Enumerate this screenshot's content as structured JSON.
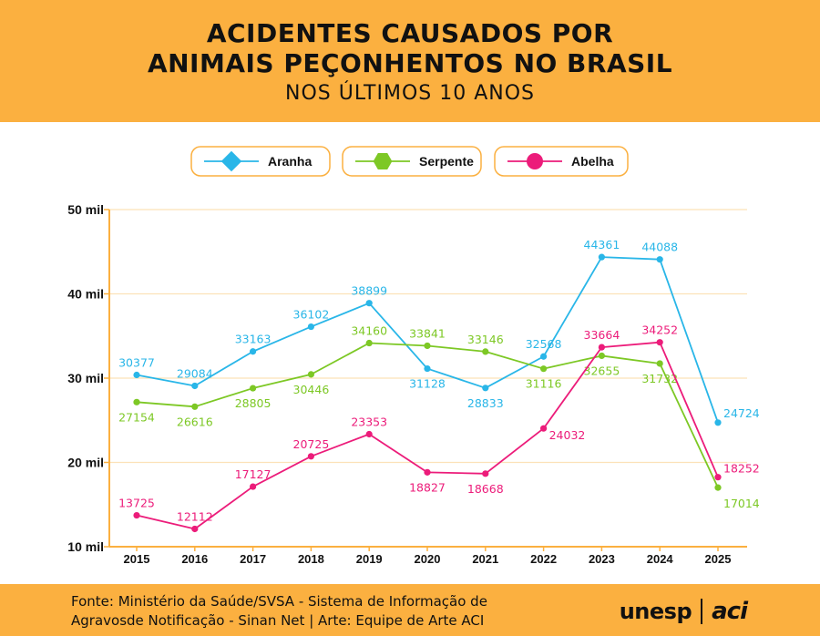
{
  "header": {
    "title_line1": "ACIDENTES CAUSADOS POR",
    "title_line2": "ANIMAIS PEÇONHENTOS NO BRASIL",
    "subtitle": "NOS ÚLTIMOS 10 ANOS"
  },
  "footer": {
    "source_line1": "Fonte: Ministério da Saúde/SVSA - Sistema de Informação de",
    "source_line2": "Agravosde Notificação - Sinan Net | Arte: Equipe de Arte ACI",
    "logo_unesp": "unesp",
    "logo_aci": "aci"
  },
  "chart_data": {
    "type": "line",
    "title": "ACIDENTES CAUSADOS POR ANIMAIS PEÇONHENTOS NO BRASIL",
    "subtitle": "NOS ÚLTIMOS 10 ANOS",
    "xlabel": "",
    "ylabel": "",
    "x": [
      "2015",
      "2016",
      "2017",
      "2018",
      "2019",
      "2020",
      "2021",
      "2022",
      "2023",
      "2024",
      "2025"
    ],
    "ylim": [
      10000,
      50000
    ],
    "y_ticks": [
      10000,
      20000,
      30000,
      40000,
      50000
    ],
    "y_tick_labels": [
      "10 mil",
      "20 mil",
      "30 mil",
      "40 mil",
      "50 mil"
    ],
    "grid": true,
    "legend_position": "top-center",
    "series": [
      {
        "name": "Aranha",
        "color": "#29B6E8",
        "marker": "diamond",
        "values": [
          30377,
          29084,
          33163,
          36102,
          38899,
          31128,
          28833,
          32568,
          44361,
          44088,
          24724
        ],
        "labels": [
          "30377",
          "29084",
          "33163",
          "36102",
          "38899",
          "31128",
          "28833",
          "32568",
          "44361",
          "44088",
          "24724"
        ],
        "label_pos": [
          "above",
          "above",
          "above",
          "above",
          "above",
          "below",
          "below",
          "above",
          "above",
          "above",
          "right"
        ]
      },
      {
        "name": "Serpente",
        "color": "#7DC825",
        "marker": "hexagon",
        "values": [
          27154,
          26616,
          28805,
          30446,
          34160,
          33841,
          33146,
          31116,
          32655,
          31732,
          17014
        ],
        "labels": [
          "27154",
          "26616",
          "28805",
          "30446",
          "34160",
          "33841",
          "33146",
          "31116",
          "32655",
          "31732",
          "17014"
        ],
        "label_pos": [
          "below",
          "below",
          "below",
          "below",
          "above",
          "above",
          "above",
          "below",
          "below",
          "below",
          "right"
        ]
      },
      {
        "name": "Abelha",
        "color": "#EC1C7A",
        "marker": "circle",
        "values": [
          13725,
          12112,
          17127,
          20725,
          23353,
          18827,
          18668,
          24032,
          33664,
          34252,
          18252
        ],
        "labels": [
          "13725",
          "12112",
          "17127",
          "20725",
          "23353",
          "18827",
          "18668",
          "24032",
          "33664",
          "34252",
          "18252"
        ],
        "label_pos": [
          "above",
          "above",
          "above",
          "above",
          "above",
          "below",
          "below",
          "right",
          "above",
          "above",
          "right"
        ]
      }
    ]
  }
}
